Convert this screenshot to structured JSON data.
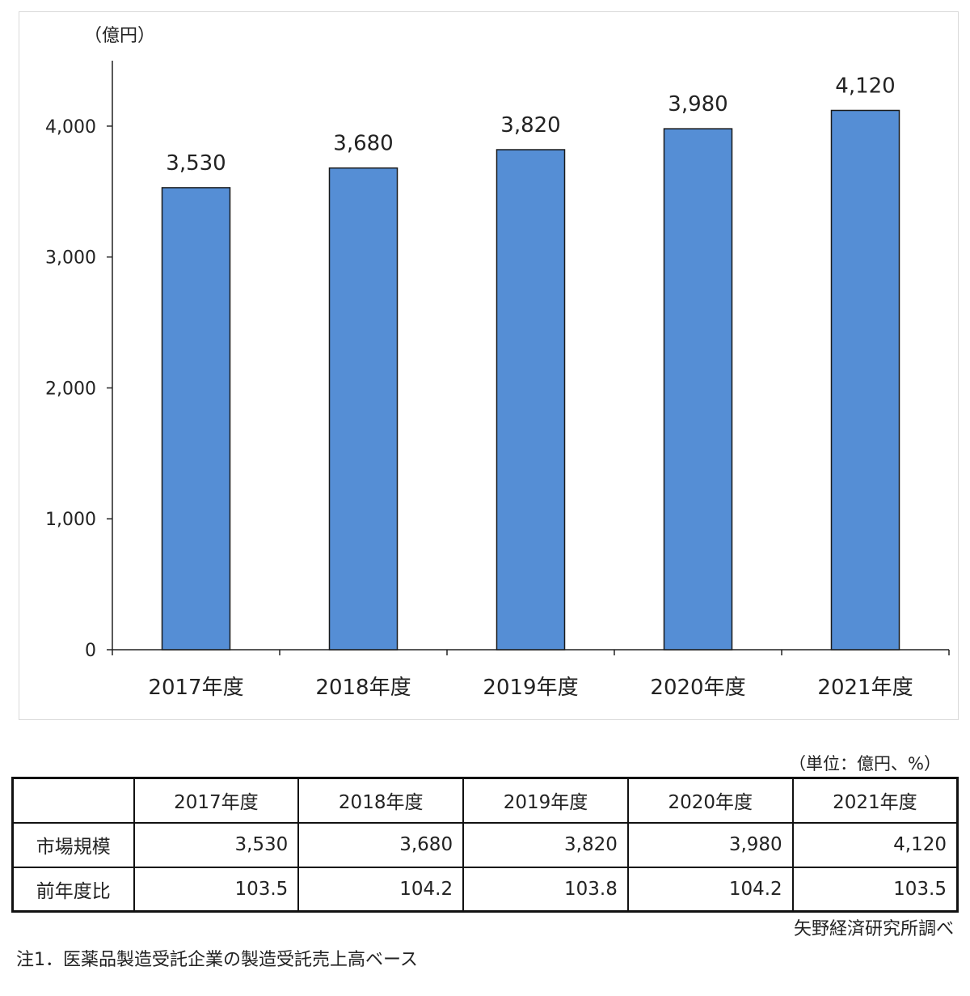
{
  "chart_data": {
    "type": "bar",
    "unit_label": "（億円）",
    "categories": [
      "2017年度",
      "2018年度",
      "2019年度",
      "2020年度",
      "2021年度"
    ],
    "values": [
      3530,
      3680,
      3820,
      3980,
      4120
    ],
    "data_labels": [
      "3,530",
      "3,680",
      "3,820",
      "3,980",
      "4,120"
    ],
    "yticks": [
      0,
      1000,
      2000,
      3000,
      4000
    ],
    "ytick_labels": [
      "0",
      "1,000",
      "2,000",
      "3,000",
      "4,000"
    ],
    "ylim": [
      0,
      4500
    ],
    "bar_color": "#558ed5",
    "grid": false,
    "legend": "none"
  },
  "table": {
    "unit_note": "（単位：億円、%）",
    "header": [
      "",
      "2017年度",
      "2018年度",
      "2019年度",
      "2020年度",
      "2021年度"
    ],
    "rows": [
      {
        "label": "市場規模",
        "cells": [
          "3,530",
          "3,680",
          "3,820",
          "3,980",
          "4,120"
        ]
      },
      {
        "label": "前年度比",
        "cells": [
          "103.5",
          "104.2",
          "103.8",
          "104.2",
          "103.5"
        ]
      }
    ]
  },
  "source": "矢野経済研究所調べ",
  "footnote": "注1．医薬品製造受託企業の製造受託売上高ベース"
}
